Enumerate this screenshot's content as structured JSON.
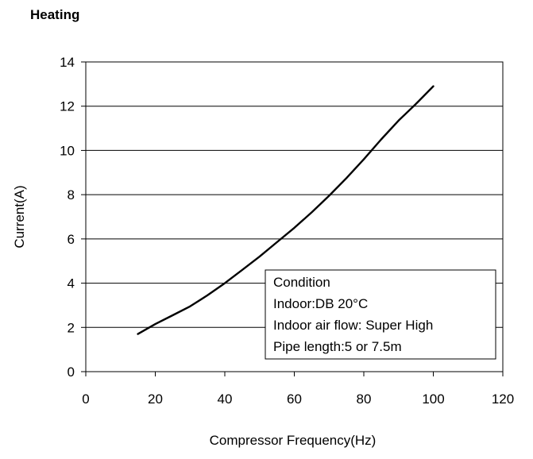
{
  "chart_data": {
    "type": "line",
    "title": "Heating",
    "xlabel": "Compressor Frequency(Hz)",
    "ylabel": "Current(A)",
    "xlim": [
      0,
      120
    ],
    "ylim": [
      0,
      14
    ],
    "xticks": [
      0,
      20,
      40,
      60,
      80,
      100,
      120
    ],
    "yticks": [
      0,
      2,
      4,
      6,
      8,
      10,
      12,
      14
    ],
    "grid": "horizontal",
    "series": [
      {
        "color": "#000000",
        "x": [
          15,
          20,
          25,
          30,
          35,
          40,
          45,
          50,
          55,
          60,
          65,
          70,
          75,
          80,
          85,
          90,
          95,
          100
        ],
        "y": [
          1.7,
          2.15,
          2.55,
          2.95,
          3.45,
          4.0,
          4.6,
          5.2,
          5.85,
          6.5,
          7.2,
          7.95,
          8.75,
          9.6,
          10.5,
          11.35,
          12.1,
          12.9
        ]
      }
    ],
    "annotation": {
      "lines": [
        "Condition",
        "Indoor:DB 20°C",
        "Indoor air flow: Super High",
        "Pipe length:5 or 7.5m"
      ]
    }
  }
}
